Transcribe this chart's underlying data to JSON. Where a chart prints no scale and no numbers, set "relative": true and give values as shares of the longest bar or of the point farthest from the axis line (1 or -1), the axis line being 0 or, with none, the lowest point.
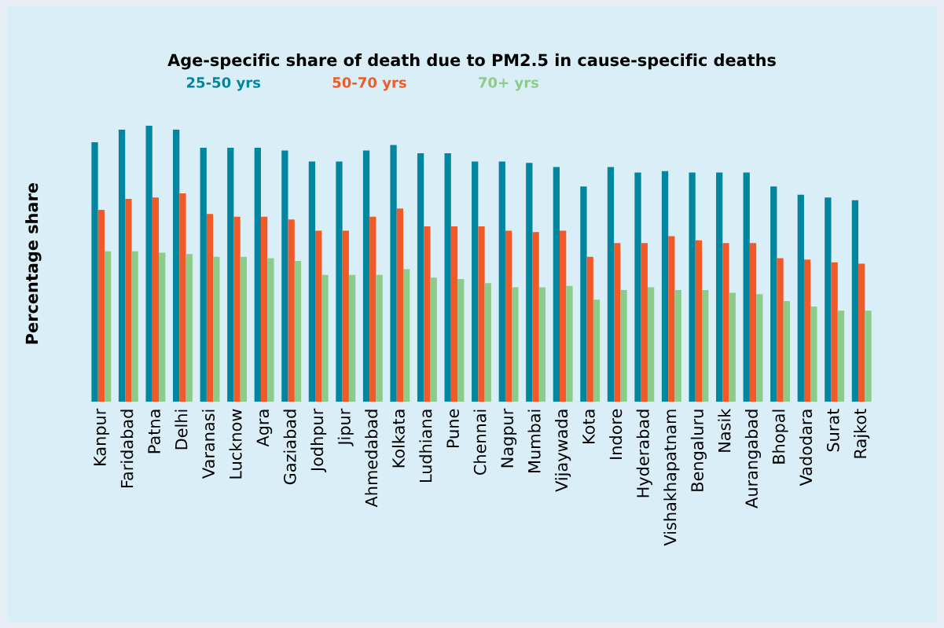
{
  "chart_data": {
    "type": "bar",
    "title": "Age-specific share of death due to PM2.5 in cause-specific deaths",
    "ylabel": "Percentage share",
    "relative": true,
    "legend": "top",
    "grid": false,
    "categories": [
      "Kanpur",
      "Faridabad",
      "Patna",
      "Delhi",
      "Varanasi",
      "Lucknow",
      "Agra",
      "Gaziabad",
      "Jodhpur",
      "Jipur",
      "Ahmedabad",
      "Kolkata",
      "Ludhiana",
      "Pune",
      "Chennai",
      "Nagpur",
      "Mumbai",
      "Vijaywada",
      "Kota",
      "Indore",
      "Hyderabad",
      "Vishakhapatnam",
      "Bengaluru",
      "Nasik",
      "Aurangabad",
      "Bhopal",
      "Vadodara",
      "Surat",
      "Rajkot"
    ],
    "series": [
      {
        "name": "25-50 yrs",
        "color": "#00869e",
        "values": [
          0.94,
          0.985,
          1,
          0.985,
          0.92,
          0.92,
          0.92,
          0.91,
          0.87,
          0.87,
          0.91,
          0.93,
          0.9,
          0.9,
          0.87,
          0.87,
          0.865,
          0.85,
          0.78,
          0.85,
          0.83,
          0.835,
          0.83,
          0.83,
          0.83,
          0.78,
          0.75,
          0.74,
          0.73
        ]
      },
      {
        "name": "50-70 yrs",
        "color": "#f05a28",
        "values": [
          0.695,
          0.735,
          0.74,
          0.755,
          0.68,
          0.67,
          0.67,
          0.66,
          0.62,
          0.62,
          0.67,
          0.7,
          0.635,
          0.635,
          0.635,
          0.62,
          0.615,
          0.62,
          0.525,
          0.575,
          0.575,
          0.6,
          0.585,
          0.575,
          0.575,
          0.52,
          0.515,
          0.505,
          0.5
        ]
      },
      {
        "name": "70+ yrs",
        "color": "#8dcb8b",
        "values": [
          0.545,
          0.545,
          0.54,
          0.535,
          0.525,
          0.525,
          0.52,
          0.51,
          0.46,
          0.46,
          0.46,
          0.48,
          0.45,
          0.445,
          0.43,
          0.415,
          0.415,
          0.42,
          0.37,
          0.405,
          0.415,
          0.405,
          0.405,
          0.395,
          0.39,
          0.365,
          0.345,
          0.33,
          0.33
        ]
      }
    ]
  }
}
